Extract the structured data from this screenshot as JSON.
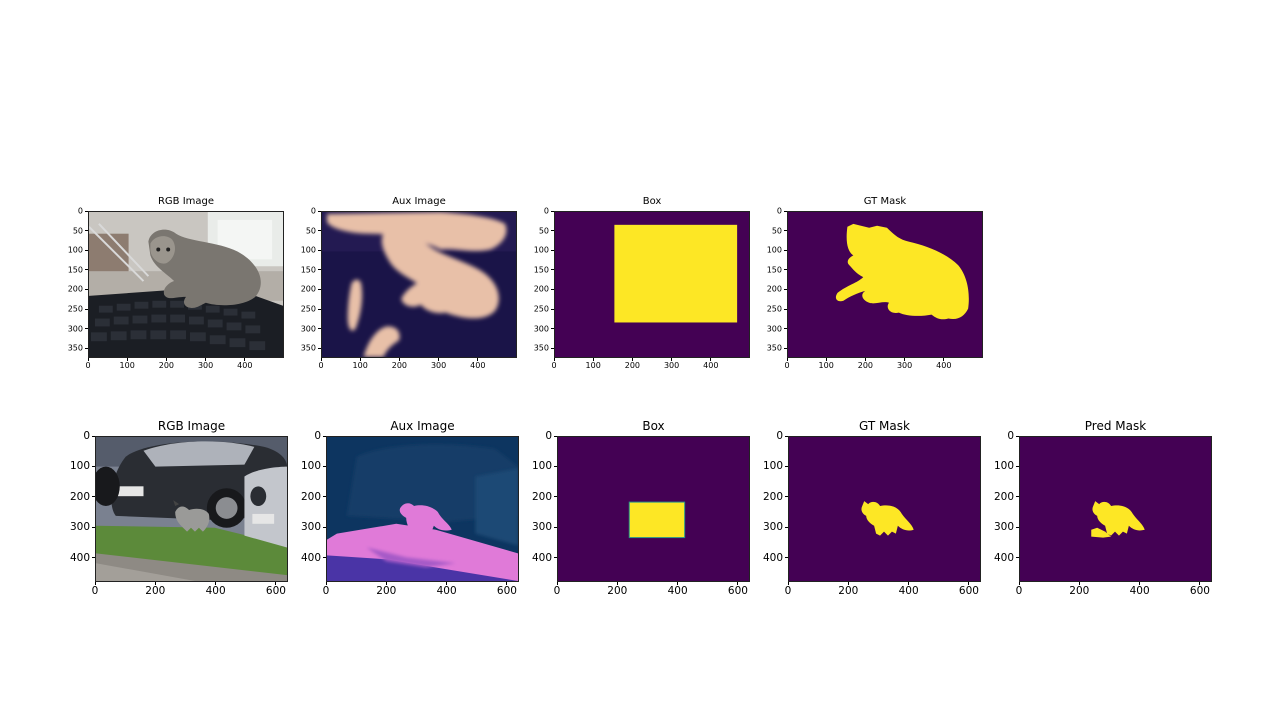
{
  "rows": [
    {
      "row": "top",
      "xticks": [
        "0",
        "100",
        "200",
        "300",
        "400"
      ],
      "yticks": [
        "0",
        "50",
        "100",
        "150",
        "200",
        "250",
        "300",
        "350"
      ],
      "panels": [
        {
          "title": "RGB Image",
          "image": "kitten-on-keyboard-photo"
        },
        {
          "title": "Aux Image",
          "image": "kitten-aux-depth-map"
        },
        {
          "title": "Box",
          "image": "box-mask"
        },
        {
          "title": "GT Mask",
          "image": "kitten-gt-mask"
        }
      ]
    },
    {
      "row": "bottom",
      "xticks": [
        "0",
        "200",
        "400",
        "600"
      ],
      "yticks": [
        "0",
        "100",
        "200",
        "300",
        "400"
      ],
      "panels": [
        {
          "title": "RGB Image",
          "image": "cat-by-cars-photo"
        },
        {
          "title": "Aux Image",
          "image": "cat-aux-depth-map"
        },
        {
          "title": "Box",
          "image": "box-mask"
        },
        {
          "title": "GT Mask",
          "image": "cat-gt-mask"
        },
        {
          "title": "Pred Mask",
          "image": "cat-pred-mask"
        }
      ]
    }
  ],
  "colors": {
    "mask_background": "#440154",
    "mask_foreground": "#fde725",
    "aux_background": "#1a1448",
    "aux_blob": "#e8c0a8",
    "aux2_background": "#0d3560",
    "aux2_blob": "#e07ad8"
  }
}
